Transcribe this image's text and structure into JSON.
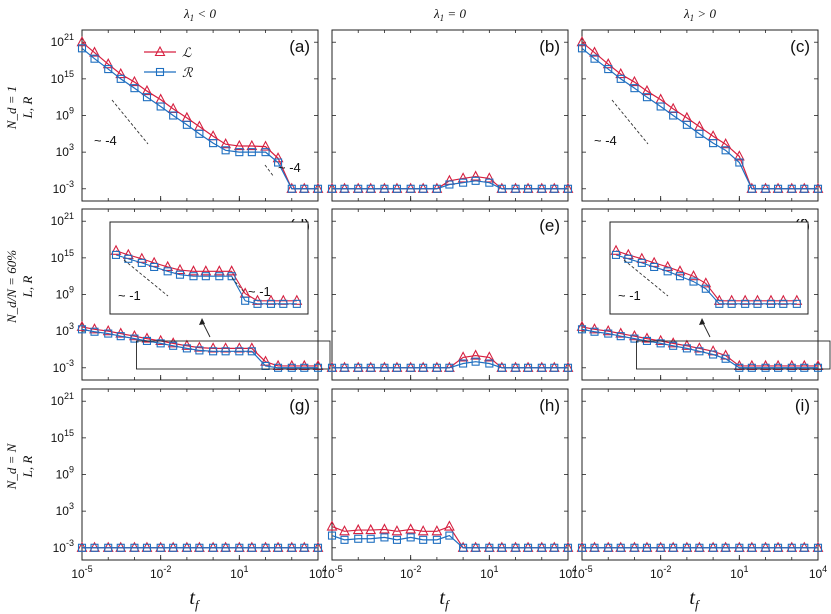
{
  "chart_data": {
    "type": "line",
    "y_scale": "log",
    "x_scale": "log",
    "xlabel": "t_f",
    "ylabel": "L, R",
    "xlim": [
      1e-05,
      10000
    ],
    "ylim": [
      1e-05,
      1e+23
    ],
    "x_ticks": [
      "10-5",
      "10-2",
      "101",
      "104"
    ],
    "y_ticks": [
      "10-3",
      "103",
      "109",
      "1015",
      "1021"
    ],
    "x": [
      1e-05,
      3e-05,
      0.0001,
      0.0003,
      0.001,
      0.003,
      0.01,
      0.03,
      0.1,
      0.3,
      1,
      3,
      10,
      30,
      100,
      300,
      1000,
      3000,
      10000
    ],
    "column_titles": [
      "λ1 < 0",
      "λ1 = 0",
      "λ1 > 0"
    ],
    "row_labels": [
      "N_d = 1",
      "N_d/N = 60%",
      "N_d = N"
    ],
    "legend": {
      "position": "top-left",
      "entries": [
        {
          "name": "L",
          "color": "#d62040",
          "marker": "triangle"
        },
        {
          "name": "R",
          "color": "#1f6fc0",
          "marker": "square"
        }
      ]
    },
    "panels": [
      {
        "label": "(a)",
        "annotations": [
          "~ -4",
          "~ -4"
        ],
        "series": [
          {
            "name": "L",
            "values": [
              1e+21,
              2e+19,
              2.5e+17,
              6000000000000000.0,
              300000000000000.0,
              10000000000000.0,
              400000000000.0,
              12000000000.0,
              400000000.0,
              15000000.0,
              400000.0,
              20000.0,
              10000.0,
              10000.0,
              8000.0,
              100,
              0.001,
              0.001,
              0.001
            ]
          },
          {
            "name": "R",
            "values": [
              1e+20,
              2e+18,
              4e+16,
              1000000000000000.0,
              30000000000000.0,
              1000000000000.0,
              30000000000.0,
              1000000000.0,
              30000000.0,
              1000000.0,
              30000.0,
              2000.0,
              1000.0,
              1000.0,
              1000.0,
              20,
              0.001,
              0.001,
              0.001
            ]
          }
        ]
      },
      {
        "label": "(b)",
        "annotations": [],
        "series": [
          {
            "name": "L",
            "values": [
              0.001,
              0.001,
              0.001,
              0.001,
              0.001,
              0.001,
              0.001,
              0.001,
              0.001,
              0.02,
              0.05,
              0.1,
              0.05,
              0.001,
              0.001,
              0.001,
              0.001,
              0.001,
              0.001
            ]
          },
          {
            "name": "R",
            "values": [
              0.001,
              0.001,
              0.001,
              0.001,
              0.001,
              0.001,
              0.001,
              0.001,
              0.001,
              0.005,
              0.01,
              0.02,
              0.01,
              0.001,
              0.001,
              0.001,
              0.001,
              0.001,
              0.001
            ]
          }
        ]
      },
      {
        "label": "(c)",
        "annotations": [
          "~ -4"
        ],
        "series": [
          {
            "name": "L",
            "values": [
              1e+21,
              2e+19,
              2.5e+17,
              6000000000000000.0,
              300000000000000.0,
              10000000000000.0,
              400000000000.0,
              12000000000.0,
              400000000.0,
              15000000.0,
              400000.0,
              20000.0,
              200,
              0.001,
              0.001,
              0.001,
              0.001,
              0.001,
              0.001
            ]
          },
          {
            "name": "R",
            "values": [
              1e+20,
              2e+18,
              4e+16,
              1000000000000000.0,
              30000000000000.0,
              1000000000000.0,
              30000000000.0,
              1000000000.0,
              30000000.0,
              1000000.0,
              30000.0,
              2000.0,
              20,
              0.001,
              0.001,
              0.001,
              0.001,
              0.001,
              0.001
            ]
          }
        ]
      },
      {
        "label": "(d)",
        "annotations": [
          "~ -1",
          "~ -1"
        ],
        "series": [
          {
            "name": "L",
            "values": [
              5000.0,
              2000.0,
              1000.0,
              400,
              150,
              60,
              25,
              10,
              4,
              2,
              1.5,
              1.5,
              1.5,
              1.5,
              0.01,
              0.002,
              0.002,
              0.002,
              0.002
            ]
          },
          {
            "name": "R",
            "values": [
              2000.0,
              800,
              400,
              150,
              60,
              25,
              10,
              4,
              1.5,
              0.7,
              0.5,
              0.5,
              0.5,
              0.5,
              0.002,
              0.001,
              0.001,
              0.001,
              0.001
            ]
          }
        ]
      },
      {
        "label": "(e)",
        "annotations": [],
        "series": [
          {
            "name": "L",
            "values": [
              0.001,
              0.001,
              0.001,
              0.001,
              0.001,
              0.001,
              0.001,
              0.001,
              0.001,
              0.001,
              0.05,
              0.1,
              0.05,
              0.001,
              0.001,
              0.001,
              0.001,
              0.001,
              0.001
            ]
          },
          {
            "name": "R",
            "values": [
              0.001,
              0.001,
              0.001,
              0.001,
              0.001,
              0.001,
              0.001,
              0.001,
              0.001,
              0.001,
              0.005,
              0.01,
              0.005,
              0.001,
              0.001,
              0.001,
              0.001,
              0.001,
              0.001
            ]
          }
        ]
      },
      {
        "label": "(f)",
        "annotations": [
          "~ -1"
        ],
        "series": [
          {
            "name": "L",
            "values": [
              5000.0,
              2000.0,
              1000.0,
              400,
              150,
              60,
              25,
              10,
              4,
              1.5,
              0.5,
              0.1,
              0.002,
              0.002,
              0.002,
              0.002,
              0.002,
              0.002,
              0.002
            ]
          },
          {
            "name": "R",
            "values": [
              2000.0,
              800,
              400,
              150,
              60,
              25,
              10,
              4,
              1.5,
              0.5,
              0.15,
              0.03,
              0.001,
              0.001,
              0.001,
              0.001,
              0.001,
              0.001,
              0.001
            ]
          }
        ]
      },
      {
        "label": "(g)",
        "annotations": [],
        "series": [
          {
            "name": "L",
            "values": [
              0.001,
              0.001,
              0.001,
              0.001,
              0.001,
              0.001,
              0.001,
              0.001,
              0.001,
              0.001,
              0.001,
              0.001,
              0.001,
              0.001,
              0.001,
              0.001,
              0.001,
              0.001,
              0.001
            ]
          },
          {
            "name": "R",
            "values": [
              0.001,
              0.001,
              0.001,
              0.001,
              0.001,
              0.001,
              0.001,
              0.001,
              0.001,
              0.001,
              0.001,
              0.001,
              0.001,
              0.001,
              0.001,
              0.001,
              0.001,
              0.001,
              0.001
            ]
          }
        ]
      },
      {
        "label": "(h)",
        "annotations": [],
        "series": [
          {
            "name": "L",
            "values": [
              3,
              0.5,
              0.8,
              0.8,
              1,
              0.5,
              1,
              0.5,
              0.5,
              3,
              0.001,
              0.001,
              0.001,
              0.001,
              0.001,
              0.001,
              0.001,
              0.001,
              0.001
            ]
          },
          {
            "name": "R",
            "values": [
              0.1,
              0.02,
              0.03,
              0.03,
              0.05,
              0.02,
              0.05,
              0.02,
              0.02,
              0.1,
              0.001,
              0.001,
              0.001,
              0.001,
              0.001,
              0.001,
              0.001,
              0.001,
              0.001
            ]
          }
        ]
      },
      {
        "label": "(i)",
        "annotations": [],
        "series": [
          {
            "name": "L",
            "values": [
              0.001,
              0.001,
              0.001,
              0.001,
              0.001,
              0.001,
              0.001,
              0.001,
              0.001,
              0.001,
              0.001,
              0.001,
              0.001,
              0.001,
              0.001,
              0.001,
              0.001,
              0.001,
              0.001
            ]
          },
          {
            "name": "R",
            "values": [
              0.001,
              0.001,
              0.001,
              0.001,
              0.001,
              0.001,
              0.001,
              0.001,
              0.001,
              0.001,
              0.001,
              0.001,
              0.001,
              0.001,
              0.001,
              0.001,
              0.001,
              0.001,
              0.001
            ]
          }
        ]
      }
    ]
  }
}
